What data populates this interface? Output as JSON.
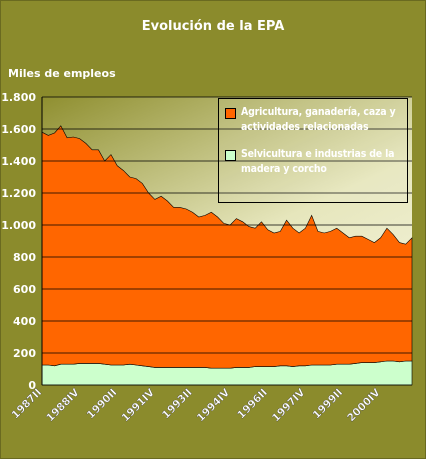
{
  "chart_data": {
    "type": "stacked_area",
    "title": "Evolución de la EPA",
    "y_label": "Miles de empleos",
    "categories": [
      "1987II",
      null,
      null,
      null,
      null,
      null,
      "1988IV",
      null,
      null,
      null,
      null,
      null,
      "1990II",
      null,
      null,
      null,
      null,
      null,
      "1991IV",
      null,
      null,
      null,
      null,
      null,
      "1993II",
      null,
      null,
      null,
      null,
      null,
      "1994IV",
      null,
      null,
      null,
      null,
      null,
      "1996II",
      null,
      null,
      null,
      null,
      null,
      "1997IV",
      null,
      null,
      null,
      null,
      null,
      "1999II",
      null,
      null,
      null,
      null,
      null,
      "2000IV",
      null,
      null,
      null,
      null,
      null
    ],
    "series": [
      {
        "name": "Agricultura, ganadería, caza y actividades relacionadas",
        "color": "#ff6600",
        "values": [
          1455,
          1435,
          1455,
          1490,
          1415,
          1420,
          1405,
          1375,
          1335,
          1335,
          1270,
          1315,
          1245,
          1215,
          1170,
          1165,
          1140,
          1085,
          1050,
          1070,
          1040,
          1000,
          1000,
          990,
          970,
          940,
          950,
          975,
          945,
          905,
          895,
          930,
          910,
          880,
          865,
          905,
          855,
          835,
          840,
          910,
          865,
          830,
          860,
          935,
          835,
          825,
          835,
          850,
          820,
          790,
          795,
          790,
          770,
          750,
          775,
          830,
          790,
          745,
          730,
          770
        ]
      },
      {
        "name": "Selvicultura e industrias de la madera y corcho",
        "color": "#ccffcc",
        "values": [
          125,
          125,
          120,
          130,
          130,
          130,
          135,
          135,
          135,
          135,
          130,
          125,
          125,
          125,
          130,
          125,
          120,
          115,
          110,
          110,
          110,
          110,
          110,
          110,
          110,
          110,
          110,
          105,
          105,
          105,
          105,
          110,
          110,
          110,
          115,
          115,
          115,
          115,
          120,
          120,
          115,
          120,
          120,
          125,
          125,
          125,
          125,
          130,
          130,
          130,
          135,
          140,
          140,
          140,
          145,
          150,
          150,
          145,
          150,
          150
        ]
      }
    ],
    "ylim": [
      0,
      1800
    ],
    "yticks": [
      0,
      200,
      400,
      600,
      800,
      {
        "value": 1000,
        "label": "1.000"
      },
      {
        "value": 1200,
        "label": "1.200"
      },
      {
        "value": 1400,
        "label": "1.400"
      },
      {
        "value": 1600,
        "label": "1.600"
      },
      {
        "value": 1800,
        "label": "1.800"
      }
    ],
    "grid": true
  }
}
